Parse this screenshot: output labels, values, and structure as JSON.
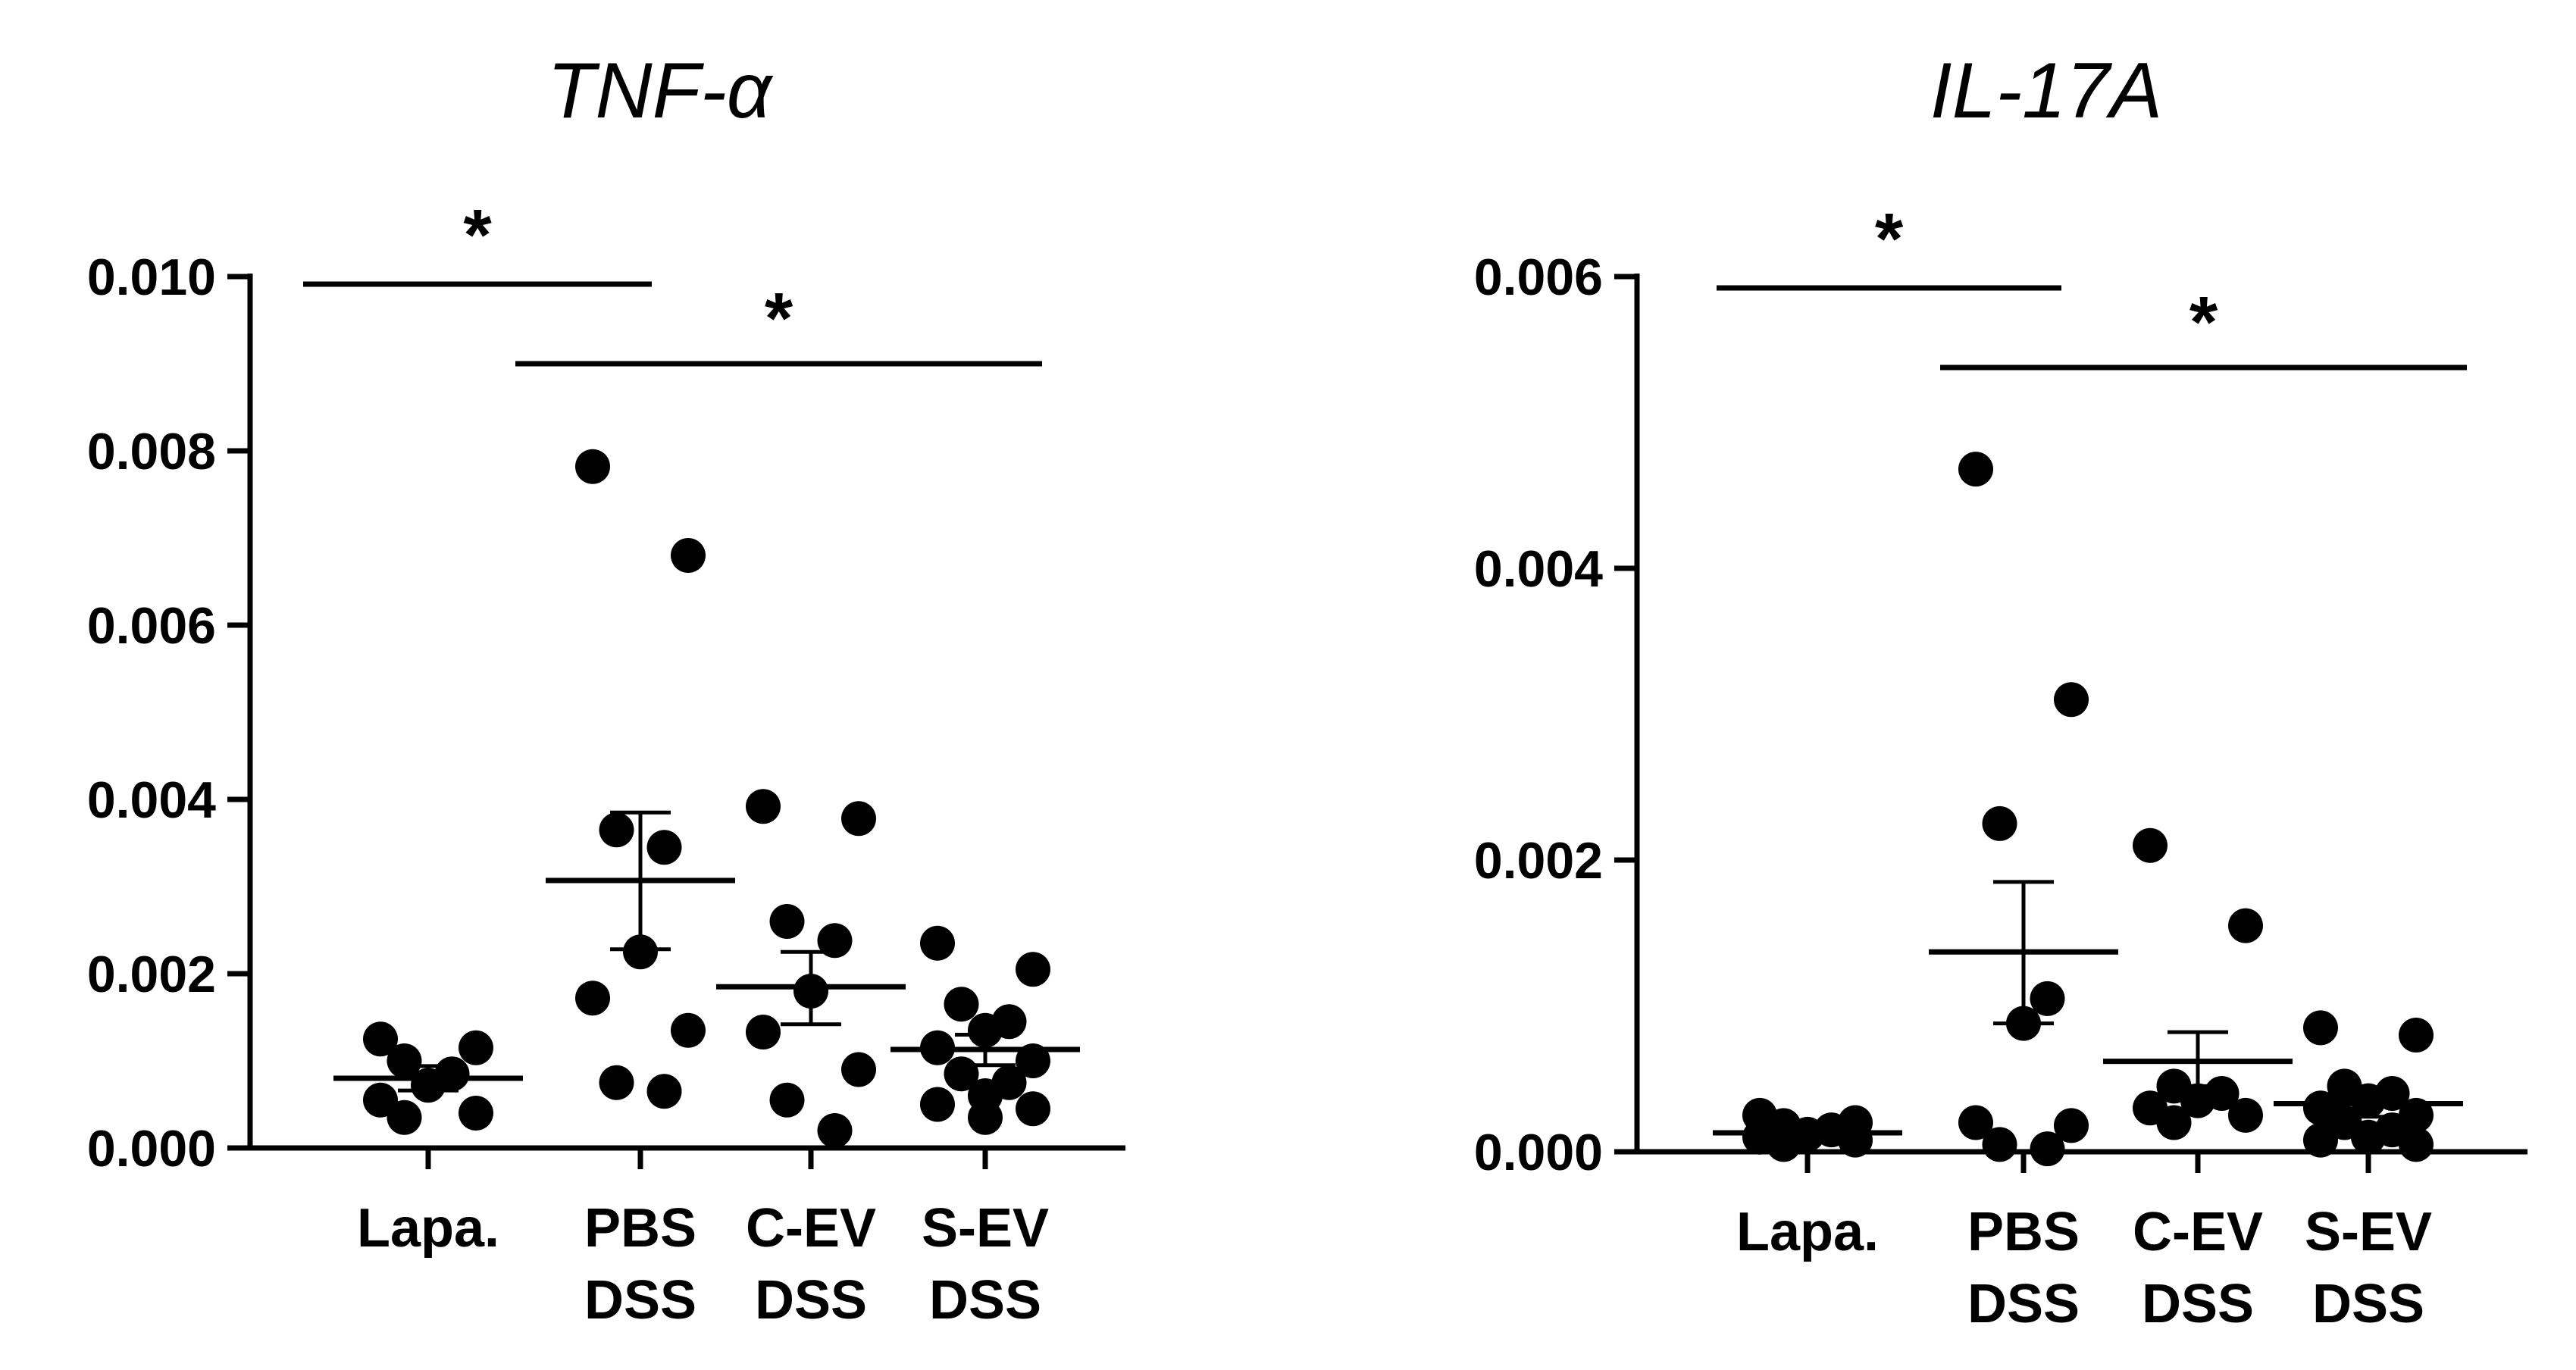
{
  "chart_data": [
    {
      "type": "scatter",
      "title": "TNF-α",
      "ylim": [
        0,
        0.01
      ],
      "yticks": [
        "0.000",
        "0.002",
        "0.004",
        "0.006",
        "0.008",
        "0.010"
      ],
      "categories": [
        [
          "Lapa."
        ],
        [
          "PBS",
          "DSS"
        ],
        [
          "C-EV",
          "DSS"
        ],
        [
          "S-EV",
          "DSS"
        ]
      ],
      "groups": [
        {
          "points": [
            0.00125,
            0.00115,
            0.001,
            0.00085,
            0.00072,
            0.00055,
            0.0004,
            0.00035
          ],
          "mean": 0.0008,
          "sem": [
            0.00066,
            0.00094
          ]
        },
        {
          "points": [
            0.00782,
            0.0068,
            0.00365,
            0.00345,
            0.00225,
            0.00172,
            0.00135,
            0.00075,
            0.00065
          ],
          "mean": 0.00307,
          "sem": [
            0.00228,
            0.00385
          ]
        },
        {
          "points": [
            0.00392,
            0.00378,
            0.0026,
            0.00238,
            0.0018,
            0.00133,
            0.0009,
            0.00055,
            0.0002
          ],
          "mean": 0.00185,
          "sem": [
            0.00142,
            0.00225
          ]
        },
        {
          "points": [
            0.00235,
            0.00205,
            0.00165,
            0.00145,
            0.00135,
            0.00115,
            0.001,
            0.00085,
            0.00075,
            0.0006,
            0.0005,
            0.00045,
            0.00035
          ],
          "mean": 0.00113,
          "sem": [
            0.00095,
            0.0013
          ]
        }
      ],
      "significance": [
        {
          "from": 0,
          "to": 1,
          "label": "*"
        },
        {
          "from": 1,
          "to": 3,
          "label": "*"
        }
      ]
    },
    {
      "type": "scatter",
      "title": "IL-17A",
      "ylim": [
        0,
        0.006
      ],
      "yticks": [
        "0.000",
        "0.002",
        "0.004",
        "0.006"
      ],
      "categories": [
        [
          "Lapa."
        ],
        [
          "PBS",
          "DSS"
        ],
        [
          "C-EV",
          "DSS"
        ],
        [
          "S-EV",
          "DSS"
        ]
      ],
      "groups": [
        {
          "points": [
            0.00025,
            0.0002,
            0.00018,
            0.00015,
            0.00012,
            0.0001,
            8e-05,
            5e-05
          ],
          "mean": 0.00013,
          "sem": [
            0.0001,
            0.00016
          ]
        },
        {
          "points": [
            0.00468,
            0.0031,
            0.00225,
            0.00105,
            0.00088,
            0.0002,
            0.00018,
            5e-05,
            2e-05
          ],
          "mean": 0.00137,
          "sem": [
            0.00088,
            0.00185
          ]
        },
        {
          "points": [
            0.0021,
            0.00155,
            0.00045,
            0.0004,
            0.00035,
            0.0003,
            0.00025,
            0.0002
          ],
          "mean": 0.00062,
          "sem": [
            0.00045,
            0.00082
          ]
        },
        {
          "points": [
            0.00085,
            0.0008,
            0.00045,
            0.0004,
            0.00035,
            0.0003,
            0.00025,
            0.0002,
            0.00015,
            0.0001,
            8e-05,
            5e-05
          ],
          "mean": 0.00033,
          "sem": [
            0.00024,
            0.00043
          ]
        }
      ],
      "significance": [
        {
          "from": 0,
          "to": 1,
          "label": "*"
        },
        {
          "from": 1,
          "to": 3,
          "label": "*"
        }
      ]
    }
  ]
}
